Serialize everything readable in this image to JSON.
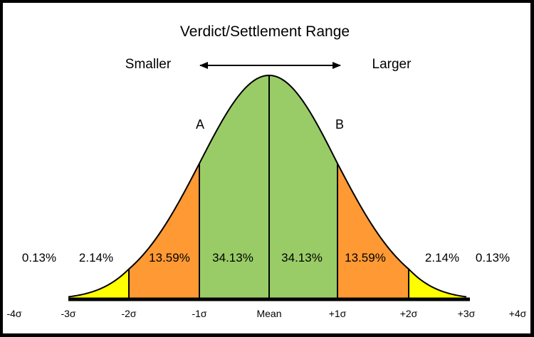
{
  "title": "Verdict/Settlement Range",
  "direction": {
    "left_label": "Smaller",
    "right_label": "Larger"
  },
  "points": {
    "a_label": "A",
    "b_label": "B"
  },
  "regions": [
    {
      "id": "left-tail",
      "from": -4,
      "to": -3,
      "percent": "0.13%",
      "color": "#ffffff"
    },
    {
      "id": "left-2",
      "from": -3,
      "to": -2,
      "percent": "2.14%",
      "color": "#ffff00"
    },
    {
      "id": "left-1",
      "from": -2,
      "to": -1,
      "percent": "13.59%",
      "color": "#ff9933"
    },
    {
      "id": "left-0",
      "from": -1,
      "to": 0,
      "percent": "34.13%",
      "color": "#99cc66"
    },
    {
      "id": "right-0",
      "from": 0,
      "to": 1,
      "percent": "34.13%",
      "color": "#99cc66"
    },
    {
      "id": "right-1",
      "from": 1,
      "to": 2,
      "percent": "13.59%",
      "color": "#ff9933"
    },
    {
      "id": "right-2",
      "from": 2,
      "to": 3,
      "percent": "2.14%",
      "color": "#ffff00"
    },
    {
      "id": "right-tail",
      "from": 3,
      "to": 4,
      "percent": "0.13%",
      "color": "#ffffff"
    }
  ],
  "x_ticks": [
    {
      "value": -4,
      "label": "-4σ"
    },
    {
      "value": -3,
      "label": "-3σ"
    },
    {
      "value": -2,
      "label": "-2σ"
    },
    {
      "value": -1,
      "label": "-1σ"
    },
    {
      "value": 0,
      "label": "Mean"
    },
    {
      "value": 1,
      "label": "+1σ"
    },
    {
      "value": 2,
      "label": "+2σ"
    },
    {
      "value": 3,
      "label": "+3σ"
    },
    {
      "value": 4,
      "label": "+4σ"
    }
  ],
  "colors": {
    "background": "#ffffff",
    "frame": "#000000",
    "outline": "#000000"
  }
}
